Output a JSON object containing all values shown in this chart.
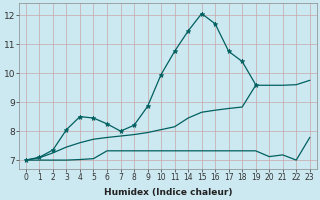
{
  "xlabel": "Humidex (Indice chaleur)",
  "background_color": "#cce8f0",
  "grid_color": "#c8a8a8",
  "line_color": "#006060",
  "xlim": [
    -0.5,
    21.5
  ],
  "ylim": [
    6.7,
    12.4
  ],
  "xtick_labels": [
    "0",
    "1",
    "2",
    "3",
    "4",
    "5",
    "6",
    "7",
    "8",
    "9",
    "10",
    "11",
    "14",
    "15",
    "16",
    "17",
    "18",
    "19",
    "20",
    "21",
    "22",
    "23"
  ],
  "yticks": [
    7,
    8,
    9,
    10,
    11,
    12
  ],
  "series": [
    {
      "x": [
        0,
        1,
        2,
        3,
        4,
        5,
        6,
        7,
        8,
        9,
        10,
        11,
        12,
        13,
        14,
        15,
        16,
        17
      ],
      "y": [
        7.0,
        7.1,
        7.35,
        8.05,
        8.5,
        8.45,
        8.25,
        8.0,
        8.2,
        8.85,
        9.95,
        10.75,
        11.45,
        12.05,
        11.7,
        10.75,
        10.4,
        9.6
      ],
      "marker": true
    },
    {
      "x": [
        0,
        1,
        2,
        3,
        4,
        5,
        6,
        7,
        8,
        9,
        10,
        11,
        12,
        13,
        14,
        15,
        16,
        17,
        18,
        19,
        20,
        21
      ],
      "y": [
        7.0,
        7.08,
        7.25,
        7.45,
        7.6,
        7.72,
        7.78,
        7.83,
        7.88,
        7.95,
        8.05,
        8.15,
        8.45,
        8.65,
        8.72,
        8.78,
        8.83,
        9.58,
        9.58,
        9.58,
        9.6,
        9.75
      ],
      "marker": false
    },
    {
      "x": [
        0,
        1,
        2,
        3,
        4,
        5,
        6,
        7,
        8,
        9,
        10,
        11,
        12,
        13,
        14,
        15,
        16,
        17,
        18,
        19,
        20,
        21
      ],
      "y": [
        7.0,
        7.0,
        7.0,
        7.0,
        7.02,
        7.05,
        7.32,
        7.32,
        7.32,
        7.32,
        7.32,
        7.32,
        7.32,
        7.32,
        7.32,
        7.32,
        7.32,
        7.32,
        7.12,
        7.18,
        7.0,
        7.78
      ],
      "marker": false
    }
  ]
}
